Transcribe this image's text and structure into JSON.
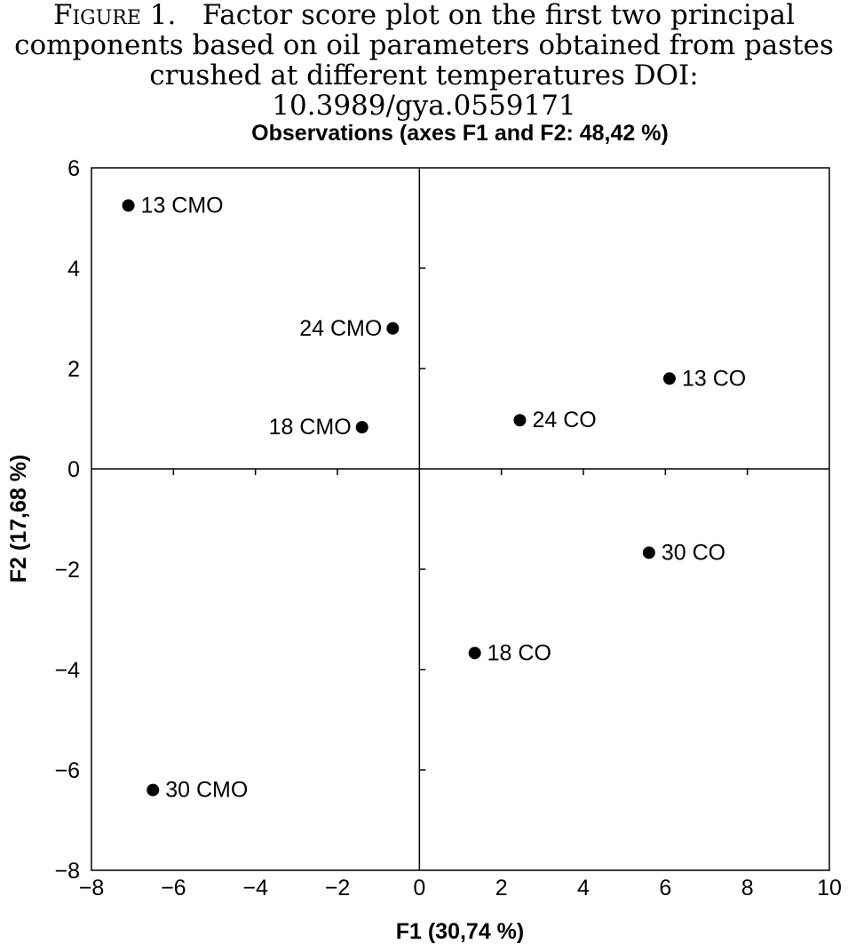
{
  "caption": {
    "figure_label": "Figure 1.",
    "line1": "Factor score plot on the first two principal",
    "line2": "components based on oil parameters obtained from pastes",
    "line3": "crushed at different temperatures DOI: 10.3989/gya.0559171"
  },
  "chart_data": {
    "type": "scatter",
    "title": "Observations (axes F1 and F2: 48,42 %)",
    "xlabel": "F1 (30,74 %)",
    "ylabel": "F2 (17,68 %)",
    "xlim": [
      -8,
      10
    ],
    "ylim": [
      -8,
      6
    ],
    "xticks": [
      -8,
      -6,
      -4,
      -2,
      0,
      2,
      4,
      6,
      8,
      10
    ],
    "xtick_labels": [
      "−8",
      "−6",
      "−4",
      "−2",
      "0",
      "2",
      "4",
      "6",
      "8",
      "10"
    ],
    "yticks": [
      -8,
      -6,
      -4,
      -2,
      0,
      2,
      4,
      6
    ],
    "ytick_labels": [
      "−8",
      "−6",
      "−4",
      "−2",
      "0",
      "2",
      "4",
      "6"
    ],
    "grid": false,
    "points": [
      {
        "label": "13 CMO",
        "x": -7.1,
        "y": 5.25,
        "label_side": "right"
      },
      {
        "label": "24 CMO",
        "x": -0.65,
        "y": 2.8,
        "label_side": "left"
      },
      {
        "label": "18 CMO",
        "x": -1.4,
        "y": 0.83,
        "label_side": "left"
      },
      {
        "label": "13 CO",
        "x": 6.1,
        "y": 1.8,
        "label_side": "right"
      },
      {
        "label": "24 CO",
        "x": 2.45,
        "y": 0.97,
        "label_side": "right"
      },
      {
        "label": "30 CO",
        "x": 5.6,
        "y": -1.67,
        "label_side": "right"
      },
      {
        "label": "18 CO",
        "x": 1.35,
        "y": -3.67,
        "label_side": "right"
      },
      {
        "label": "30 CMO",
        "x": -6.5,
        "y": -6.4,
        "label_side": "right"
      }
    ]
  }
}
